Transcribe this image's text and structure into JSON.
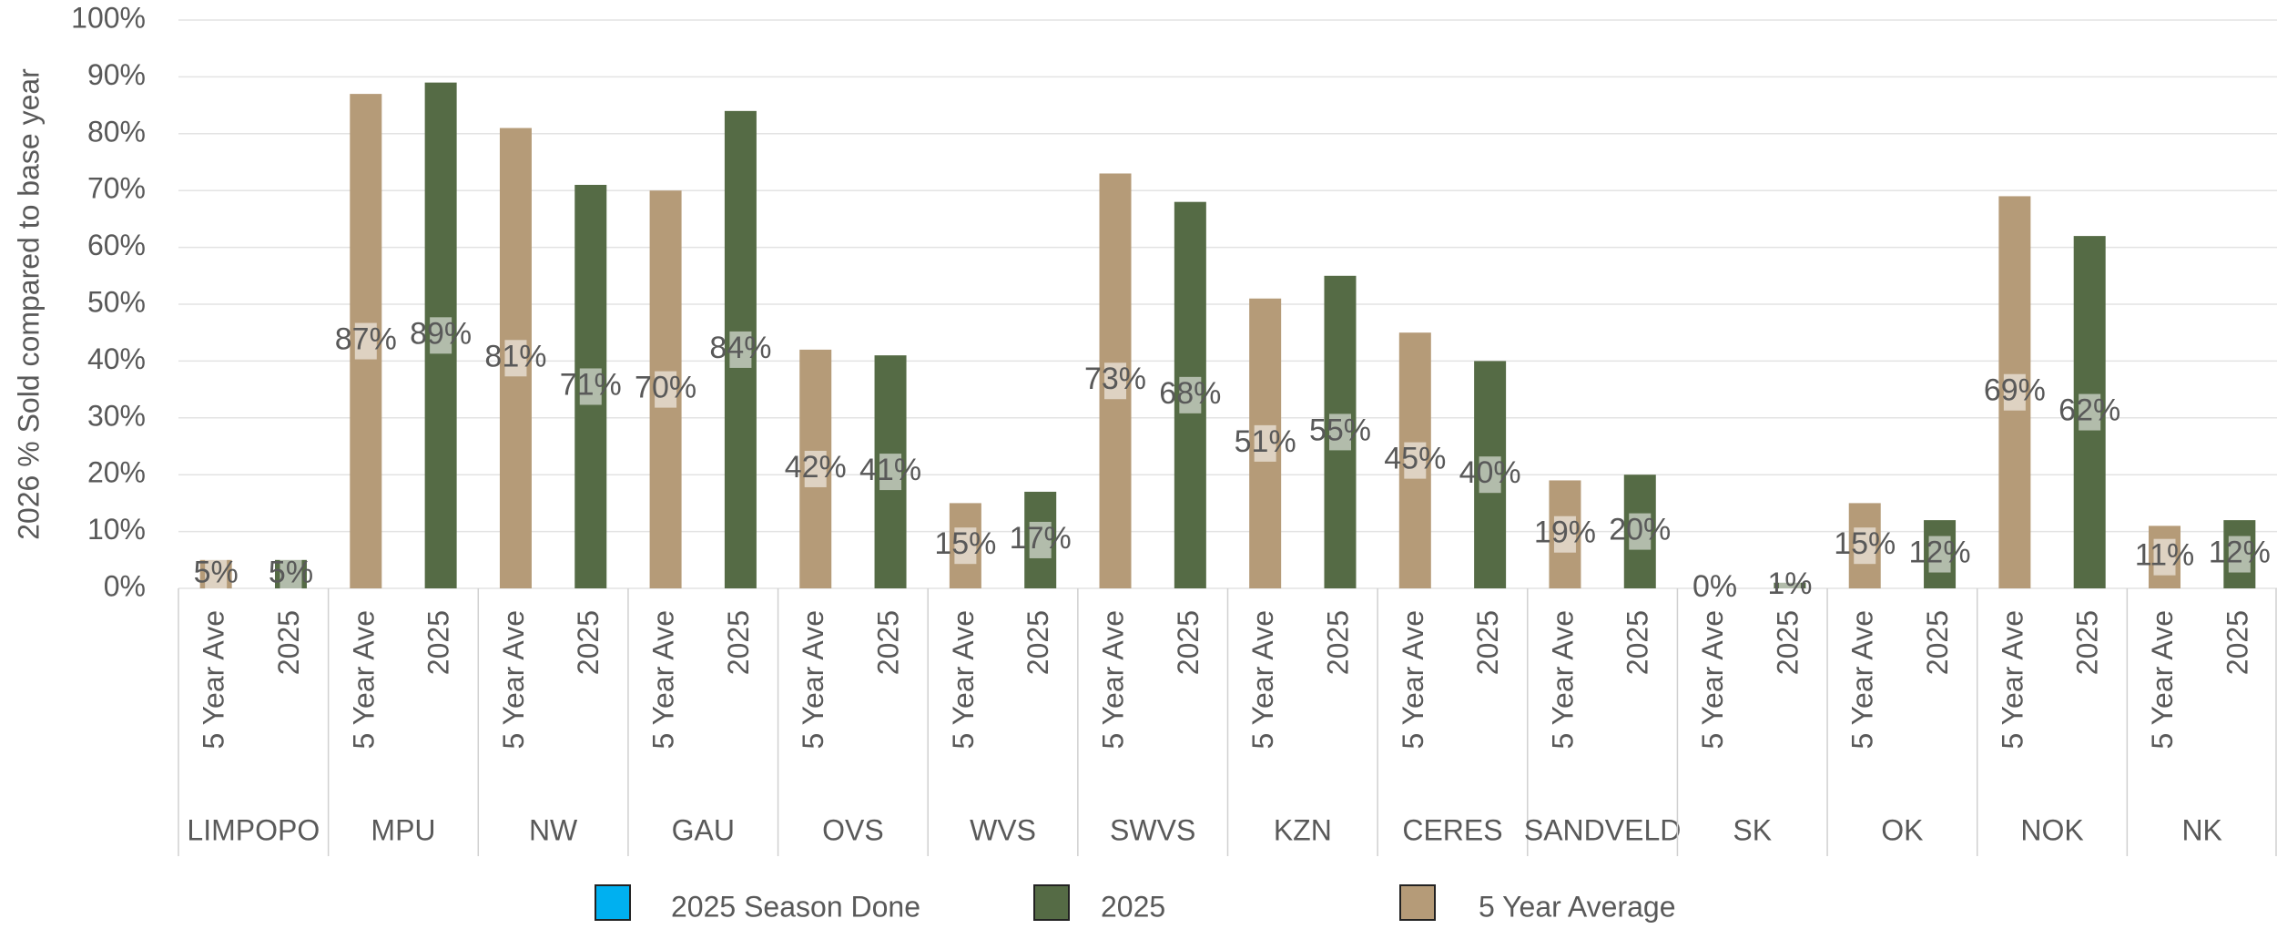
{
  "chart_data": {
    "type": "bar",
    "y_label": "2026 % Sold compared to base year",
    "groups": [
      "LIMPOPO",
      "MPU",
      "NW",
      "GAU",
      "OVS",
      "WVS",
      "SWVS",
      "KZN",
      "CERES",
      "SANDVELD",
      "SK",
      "OK",
      "NOK",
      "NK"
    ],
    "subcategories": [
      "5 Year Ave",
      "2025"
    ],
    "series": [
      {
        "name": "2025 Season Done",
        "color": "#00b0f0",
        "values": [
          null,
          null,
          null,
          null,
          null,
          null,
          null,
          null,
          null,
          null,
          null,
          null,
          null,
          null
        ]
      },
      {
        "name": "2025",
        "color": "#556b45",
        "values": [
          5,
          89,
          71,
          84,
          41,
          17,
          68,
          55,
          40,
          20,
          1,
          12,
          62,
          12
        ],
        "value_labels": [
          "5%",
          "89%",
          "71%",
          "84%",
          "41%",
          "17%",
          "68%",
          "55%",
          "40%",
          "20%",
          "1%",
          "12%",
          "62%",
          "12%"
        ]
      },
      {
        "name": "5 Year Average",
        "color": "#b59b78",
        "values": [
          5,
          87,
          81,
          70,
          42,
          15,
          73,
          51,
          45,
          19,
          0,
          15,
          69,
          11
        ],
        "value_labels": [
          "5%",
          "87%",
          "81%",
          "70%",
          "42%",
          "15%",
          "73%",
          "51%",
          "45%",
          "19%",
          "0%",
          "15%",
          "69%",
          "11%"
        ]
      }
    ],
    "ylim": [
      0,
      100
    ],
    "yticks": [
      {
        "value": 0,
        "label": "0%"
      },
      {
        "value": 10,
        "label": "10%"
      },
      {
        "value": 20,
        "label": "20%"
      },
      {
        "value": 30,
        "label": "30%"
      },
      {
        "value": 40,
        "label": "40%"
      },
      {
        "value": 50,
        "label": "50%"
      },
      {
        "value": 60,
        "label": "60%"
      },
      {
        "value": 70,
        "label": "70%"
      },
      {
        "value": 80,
        "label": "80%"
      },
      {
        "value": 90,
        "label": "90%"
      },
      {
        "value": 100,
        "label": "100%"
      }
    ],
    "grid": true
  }
}
